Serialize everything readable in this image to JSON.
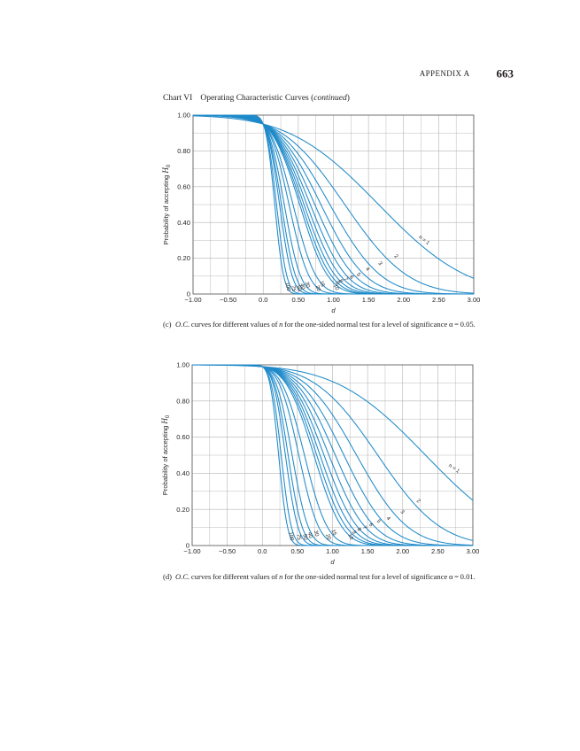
{
  "header": {
    "running_head": "APPENDIX A",
    "page_number": "663"
  },
  "chart_title": {
    "label": "Chart VI",
    "text": "Operating Characteristic Curves (",
    "emph": "continued",
    "close": ")"
  },
  "colors": {
    "curve": "#1f8ac9",
    "grid": "#b3b3b3",
    "axis": "#555555",
    "text": "#231f20"
  },
  "chart_data": [
    {
      "id": "c",
      "type": "line",
      "xlabel": "d",
      "ylabel": "Probability of accepting H0",
      "ylabel_main": "Probability of accepting ",
      "ylabel_h": "H",
      "ylabel_sub": "0",
      "xlim": [
        -1.0,
        3.0
      ],
      "ylim": [
        0,
        1.0
      ],
      "x_ticks": [
        "−1.00",
        "−0.50",
        "0.0",
        "0.50",
        "1.00",
        "1.50",
        "2.00",
        "2.50",
        "3.00"
      ],
      "y_ticks": [
        "0",
        "0.20",
        "0.40",
        "0.60",
        "0.80",
        "1.00"
      ],
      "alpha": 0.05,
      "series_n": [
        1,
        2,
        3,
        4,
        5,
        6,
        7,
        8,
        9,
        10,
        15,
        20,
        30,
        40,
        50,
        75,
        100
      ],
      "labels": [
        {
          "text": "n = 1",
          "x": 2.28,
          "y": 0.295,
          "rot": 38
        },
        {
          "text": "2",
          "x": 1.88,
          "y": 0.205,
          "rot": 45
        },
        {
          "text": "3",
          "x": 1.65,
          "y": 0.165,
          "rot": 50
        },
        {
          "text": "4",
          "x": 1.47,
          "y": 0.135,
          "rot": 55
        },
        {
          "text": "5",
          "x": 1.34,
          "y": 0.105,
          "rot": 58
        },
        {
          "text": "6",
          "x": 1.24,
          "y": 0.09,
          "rot": 60
        },
        {
          "text": "7",
          "x": 1.16,
          "y": 0.08,
          "rot": 62
        },
        {
          "text": "8",
          "x": 1.09,
          "y": 0.07,
          "rot": 64
        },
        {
          "text": "9",
          "x": 1.04,
          "y": 0.06,
          "rot": 66
        },
        {
          "text": "10",
          "x": 1.02,
          "y": 0.035,
          "rot": 68
        },
        {
          "text": "15",
          "x": 0.82,
          "y": 0.055,
          "rot": 72
        },
        {
          "text": "20",
          "x": 0.76,
          "y": 0.03,
          "rot": 74
        },
        {
          "text": "30",
          "x": 0.61,
          "y": 0.05,
          "rot": 76
        },
        {
          "text": "40",
          "x": 0.54,
          "y": 0.04,
          "rot": 77
        },
        {
          "text": "50",
          "x": 0.49,
          "y": 0.03,
          "rot": 78
        },
        {
          "text": "75",
          "x": 0.41,
          "y": 0.03,
          "rot": 79
        },
        {
          "text": "100",
          "x": 0.33,
          "y": 0.04,
          "rot": 80
        }
      ]
    },
    {
      "id": "d",
      "type": "line",
      "xlabel": "d",
      "ylabel": "Probability of accepting H0",
      "ylabel_main": "Probability of accepting ",
      "ylabel_h": "H",
      "ylabel_sub": "0",
      "xlim": [
        -1.0,
        3.0
      ],
      "ylim": [
        0,
        1.0
      ],
      "x_ticks": [
        "−1.00",
        "−0.50",
        "0.0",
        "0.50",
        "1.00",
        "1.50",
        "2.00",
        "2.50",
        "3.00"
      ],
      "y_ticks": [
        "0",
        "0.20",
        "0.40",
        "0.60",
        "0.80",
        "1.00"
      ],
      "alpha": 0.01,
      "series_n": [
        1,
        2,
        3,
        4,
        5,
        6,
        7,
        8,
        9,
        10,
        15,
        20,
        30,
        40,
        50,
        75,
        100
      ],
      "labels": [
        {
          "text": "n = 1",
          "x": 2.72,
          "y": 0.42,
          "rot": 35
        },
        {
          "text": "2",
          "x": 2.21,
          "y": 0.24,
          "rot": 42
        },
        {
          "text": "3",
          "x": 1.98,
          "y": 0.18,
          "rot": 47
        },
        {
          "text": "4",
          "x": 1.78,
          "y": 0.145,
          "rot": 52
        },
        {
          "text": "5",
          "x": 1.64,
          "y": 0.13,
          "rot": 56
        },
        {
          "text": "6",
          "x": 1.53,
          "y": 0.11,
          "rot": 58
        },
        {
          "text": "7",
          "x": 1.44,
          "y": 0.095,
          "rot": 60
        },
        {
          "text": "8",
          "x": 1.36,
          "y": 0.085,
          "rot": 62
        },
        {
          "text": "9",
          "x": 1.29,
          "y": 0.07,
          "rot": 64
        },
        {
          "text": "10",
          "x": 1.24,
          "y": 0.045,
          "rot": 66
        },
        {
          "text": "15",
          "x": 1.0,
          "y": 0.07,
          "rot": 70
        },
        {
          "text": "20",
          "x": 0.92,
          "y": 0.045,
          "rot": 72
        },
        {
          "text": "30",
          "x": 0.75,
          "y": 0.065,
          "rot": 74
        },
        {
          "text": "40",
          "x": 0.66,
          "y": 0.055,
          "rot": 76
        },
        {
          "text": "50",
          "x": 0.59,
          "y": 0.045,
          "rot": 77
        },
        {
          "text": "75",
          "x": 0.5,
          "y": 0.045,
          "rot": 78
        },
        {
          "text": "100",
          "x": 0.39,
          "y": 0.05,
          "rot": 80
        }
      ]
    }
  ],
  "captions": {
    "c": {
      "tag": "(c)",
      "oc": "O.C.",
      "text_a": " curves for different values of ",
      "n": "n",
      "text_b": " for the one-sided normal test for a level of significance α = 0.05."
    },
    "d": {
      "tag": "(d)",
      "oc": "O.C.",
      "text_a": " curves for different values of ",
      "n": "n",
      "text_b": " for the one-sided normal test for a level of significance α = 0.01."
    }
  }
}
